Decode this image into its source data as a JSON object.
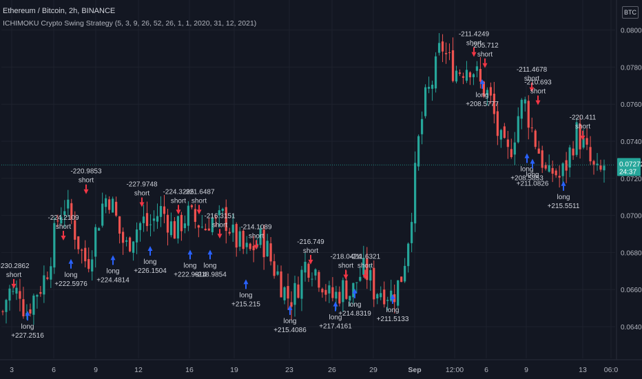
{
  "header": {
    "symbol_title": "Ethereum / Bitcoin, 2h, BINANCE",
    "strategy_title": "ICHIMOKU Crypto Swing Strategy (5, 3, 9, 26, 52, 26, 1, 1, 2020, 31, 12, 2021)",
    "currency": "BTC"
  },
  "price_axis": {
    "ticks": [
      "0.080000",
      "0.078000",
      "0.076000",
      "0.074000",
      "0.072000",
      "0.070000",
      "0.068000",
      "0.066000",
      "0.064000"
    ],
    "current_price": "0.072722",
    "countdown": "24:37"
  },
  "colors": {
    "background": "#131722",
    "grid": "#1e222d",
    "up": "#26a69a",
    "down": "#ef5350",
    "long_arrow": "#2962ff",
    "short_arrow": "#f23645",
    "price_label": "#26a69a"
  },
  "chart_data": {
    "type": "candlestick",
    "title": "Ethereum / Bitcoin, 2h, BINANCE",
    "ylim": [
      0.0633,
      0.081
    ],
    "x_tick_labels": [
      "3",
      "6",
      "9",
      "12",
      "16",
      "19",
      "23",
      "26",
      "29",
      "Sep",
      "12:00",
      "6",
      "9",
      "13",
      "06:0"
    ],
    "grid": true,
    "price_path": [
      [
        0,
        0.0648
      ],
      [
        1,
        0.066
      ],
      [
        2,
        0.0656
      ],
      [
        3,
        0.0661
      ],
      [
        4,
        0.0647
      ],
      [
        5,
        0.0653
      ],
      [
        6,
        0.0659
      ],
      [
        7,
        0.0663
      ],
      [
        8,
        0.0672
      ],
      [
        9,
        0.0686
      ],
      [
        10,
        0.0701
      ],
      [
        11,
        0.0706
      ],
      [
        12,
        0.0699
      ],
      [
        13,
        0.069
      ],
      [
        14,
        0.068
      ],
      [
        15,
        0.0674
      ],
      [
        16,
        0.0685
      ],
      [
        17,
        0.0697
      ],
      [
        18,
        0.0709
      ],
      [
        19,
        0.071
      ],
      [
        20,
        0.07
      ],
      [
        21,
        0.0688
      ],
      [
        22,
        0.0683
      ],
      [
        23,
        0.069
      ],
      [
        24,
        0.0694
      ],
      [
        25,
        0.0697
      ],
      [
        26,
        0.0694
      ],
      [
        27,
        0.0698
      ],
      [
        28,
        0.0703
      ],
      [
        29,
        0.07
      ],
      [
        30,
        0.0694
      ],
      [
        31,
        0.0691
      ],
      [
        32,
        0.0698
      ],
      [
        33,
        0.07
      ],
      [
        34,
        0.0697
      ],
      [
        35,
        0.0696
      ],
      [
        36,
        0.0693
      ],
      [
        37,
        0.07
      ],
      [
        38,
        0.0694
      ],
      [
        39,
        0.0699
      ],
      [
        40,
        0.0697
      ],
      [
        41,
        0.0688
      ],
      [
        42,
        0.0685
      ],
      [
        43,
        0.068
      ],
      [
        44,
        0.068
      ],
      [
        45,
        0.0685
      ],
      [
        46,
        0.0687
      ],
      [
        47,
        0.0682
      ],
      [
        48,
        0.0673
      ],
      [
        49,
        0.0668
      ],
      [
        50,
        0.066
      ],
      [
        51,
        0.0655
      ],
      [
        52,
        0.0658
      ],
      [
        53,
        0.0667
      ],
      [
        54,
        0.0675
      ],
      [
        55,
        0.0673
      ],
      [
        56,
        0.0669
      ],
      [
        57,
        0.0664
      ],
      [
        58,
        0.0656
      ],
      [
        59,
        0.0656
      ],
      [
        60,
        0.0659
      ],
      [
        61,
        0.0662
      ],
      [
        62,
        0.0657
      ],
      [
        63,
        0.0665
      ],
      [
        64,
        0.067
      ],
      [
        65,
        0.0668
      ],
      [
        66,
        0.066
      ],
      [
        67,
        0.066
      ],
      [
        68,
        0.066
      ],
      [
        69,
        0.0657
      ],
      [
        70,
        0.066
      ],
      [
        71,
        0.0668
      ],
      [
        72,
        0.0685
      ],
      [
        73,
        0.071
      ],
      [
        74,
        0.074
      ],
      [
        75,
        0.076
      ],
      [
        76,
        0.0768
      ],
      [
        77,
        0.0778
      ],
      [
        78,
        0.0793
      ],
      [
        79,
        0.0785
      ],
      [
        80,
        0.078
      ],
      [
        81,
        0.0778
      ],
      [
        82,
        0.078
      ],
      [
        83,
        0.0782
      ],
      [
        84,
        0.0778
      ],
      [
        85,
        0.077
      ],
      [
        86,
        0.0767
      ],
      [
        87,
        0.076
      ],
      [
        88,
        0.0745
      ],
      [
        89,
        0.0735
      ],
      [
        90,
        0.0732
      ],
      [
        91,
        0.0744
      ],
      [
        92,
        0.0758
      ],
      [
        93,
        0.076
      ],
      [
        94,
        0.0748
      ],
      [
        95,
        0.0738
      ],
      [
        96,
        0.073
      ],
      [
        97,
        0.0718
      ],
      [
        98,
        0.0725
      ],
      [
        99,
        0.072
      ],
      [
        100,
        0.0725
      ],
      [
        101,
        0.0735
      ],
      [
        102,
        0.0745
      ],
      [
        103,
        0.074
      ],
      [
        104,
        0.0732
      ],
      [
        105,
        0.0725
      ],
      [
        106,
        0.072
      ],
      [
        107,
        0.0727
      ]
    ],
    "markers": [
      {
        "type": "short",
        "label": "short",
        "value": "-230.2862",
        "price": 0.0659
      },
      {
        "type": "long",
        "label": "long",
        "value": "+227.2516",
        "price": 0.065
      },
      {
        "type": "short",
        "label": "short",
        "value": "-224.2109",
        "price": 0.0685
      },
      {
        "type": "long",
        "label": "long",
        "value": "+222.5976",
        "price": 0.0678
      },
      {
        "type": "short",
        "label": "short",
        "value": "-220.9853",
        "price": 0.071
      },
      {
        "type": "long",
        "label": "long",
        "value": "+224.4814",
        "price": 0.068
      },
      {
        "type": "short",
        "label": "short",
        "value": "-227.9748",
        "price": 0.0703
      },
      {
        "type": "long",
        "label": "long",
        "value": "+226.1504",
        "price": 0.0685
      },
      {
        "type": "short",
        "label": "short",
        "value": "-224.3295",
        "price": 0.0699
      },
      {
        "type": "long",
        "label": "long",
        "value": "+222.9914",
        "price": 0.0683
      },
      {
        "type": "short",
        "label": "short",
        "value": "-221.6487",
        "price": 0.0699
      },
      {
        "type": "long",
        "label": "long",
        "value": "+218.9854",
        "price": 0.0683
      },
      {
        "type": "short",
        "label": "short",
        "value": "-216.3151",
        "price": 0.0686
      },
      {
        "type": "long",
        "label": "long",
        "value": "+215.215",
        "price": 0.0667
      },
      {
        "type": "short",
        "label": "short",
        "value": "-214.1089",
        "price": 0.068
      },
      {
        "type": "long",
        "label": "long",
        "value": "+215.4086",
        "price": 0.0653
      },
      {
        "type": "short",
        "label": "short",
        "value": "-216.749",
        "price": 0.0672
      },
      {
        "type": "long",
        "label": "long",
        "value": "+217.4161",
        "price": 0.0655
      },
      {
        "type": "short",
        "label": "short",
        "value": "-218.0424",
        "price": 0.0664
      },
      {
        "type": "long",
        "label": "long",
        "value": "+214.8319",
        "price": 0.0662
      },
      {
        "type": "short",
        "label": "short",
        "value": "-211.6321",
        "price": 0.0664
      },
      {
        "type": "long",
        "label": "long",
        "value": "+211.5133",
        "price": 0.0659
      },
      {
        "type": "short",
        "label": "short",
        "value": "-211.4249",
        "price": 0.0784
      },
      {
        "type": "long",
        "label": "long",
        "value": "+208.5777",
        "price": 0.0775
      },
      {
        "type": "short",
        "label": "short",
        "value": "-205.712",
        "price": 0.0778
      },
      {
        "type": "short",
        "label": "short",
        "value": "-211.4678",
        "price": 0.0765
      },
      {
        "type": "long",
        "label": "long",
        "value": "+208.5853",
        "price": 0.0735
      },
      {
        "type": "short",
        "label": "short",
        "value": "-210.693",
        "price": 0.0758
      },
      {
        "type": "long",
        "label": "long",
        "value": "+211.0826",
        "price": 0.0732
      },
      {
        "type": "short",
        "label": "short",
        "value": "-220.411",
        "price": 0.0739
      },
      {
        "type": "long",
        "label": "long",
        "value": "+215.5511",
        "price": 0.072
      }
    ]
  }
}
